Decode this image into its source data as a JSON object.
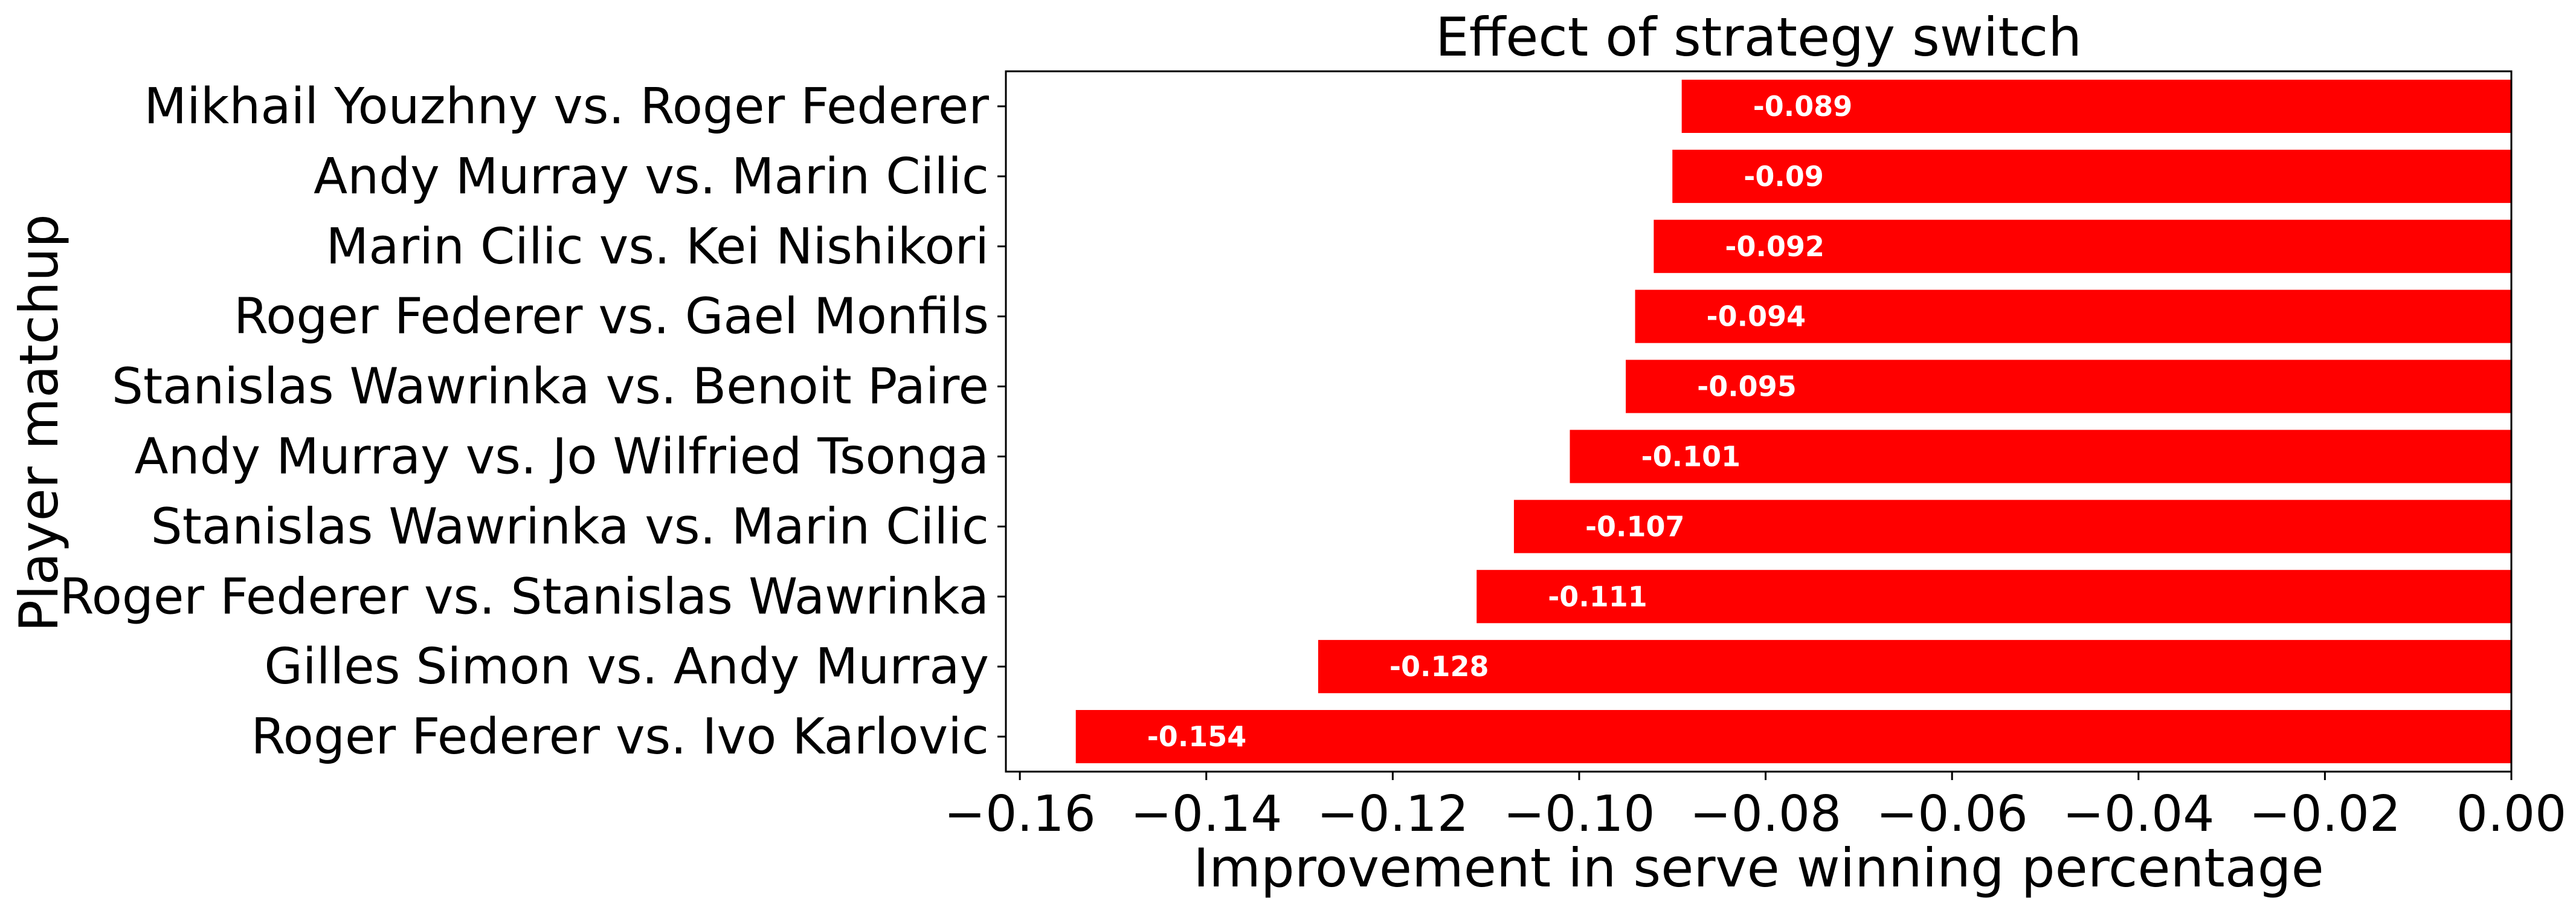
{
  "chart_data": {
    "type": "bar",
    "orientation": "horizontal",
    "title": "Effect of strategy switch",
    "xlabel": "Improvement in serve winning percentage",
    "ylabel": "Player matchup",
    "xlim": [
      -0.1615,
      0.0
    ],
    "x_ticks": [
      -0.16,
      -0.14,
      -0.12,
      -0.1,
      -0.08,
      -0.06,
      -0.04,
      -0.02,
      0.0
    ],
    "x_tick_labels": [
      "−0.16",
      "−0.14",
      "−0.12",
      "−0.10",
      "−0.08",
      "−0.06",
      "−0.04",
      "−0.02",
      "0.00"
    ],
    "bar_color": "#ff0000",
    "grid": false,
    "categories": [
      "Mikhail Youzhny vs. Roger Federer",
      "Andy Murray vs. Marin Cilic",
      "Marin Cilic vs. Kei Nishikori",
      "Roger Federer vs. Gael Monfils",
      "Stanislas Wawrinka vs. Benoit Paire",
      "Andy Murray vs. Jo Wilfried Tsonga",
      "Stanislas Wawrinka vs. Marin Cilic",
      "Roger Federer vs. Stanislas Wawrinka",
      "Gilles Simon vs. Andy Murray",
      "Roger Federer vs. Ivo Karlovic"
    ],
    "values": [
      -0.089,
      -0.09,
      -0.092,
      -0.094,
      -0.095,
      -0.101,
      -0.107,
      -0.111,
      -0.128,
      -0.154
    ],
    "data_labels": [
      "-0.089",
      "-0.09",
      "-0.092",
      "-0.094",
      "-0.095",
      "-0.101",
      "-0.107",
      "-0.111",
      "-0.128",
      "-0.154"
    ]
  }
}
